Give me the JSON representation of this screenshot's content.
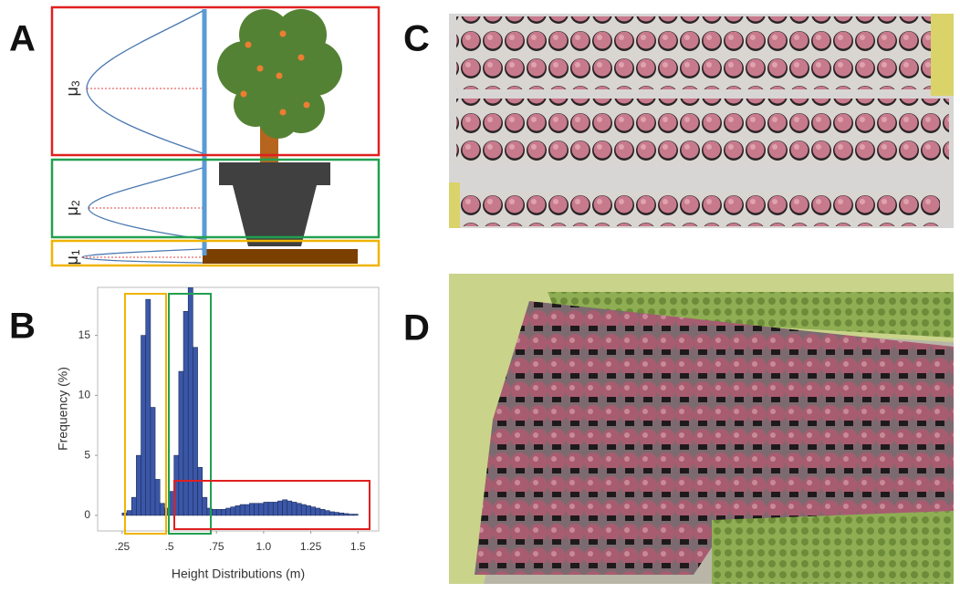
{
  "panel_labels": [
    "A",
    "B",
    "C",
    "D"
  ],
  "diagram": {
    "levels": [
      {
        "symbol": "μ",
        "index": "3"
      },
      {
        "symbol": "μ",
        "index": "2"
      },
      {
        "symbol": "μ",
        "index": "1"
      }
    ]
  },
  "chart_data": {
    "type": "histogram",
    "xlabel": "Height Distributions (m)",
    "ylabel": "Frequency (%)",
    "color": "#3b57a8",
    "bins": [
      0.25,
      0.275,
      0.3,
      0.325,
      0.35,
      0.375,
      0.4,
      0.425,
      0.45,
      0.475,
      0.5,
      0.525,
      0.55,
      0.575,
      0.6,
      0.625,
      0.65,
      0.675,
      0.7,
      0.725,
      0.75,
      0.775,
      0.8,
      0.825,
      0.85,
      0.875,
      0.9,
      0.925,
      0.95,
      0.975,
      1.0,
      1.025,
      1.05,
      1.075,
      1.1,
      1.125,
      1.15,
      1.175,
      1.2,
      1.225,
      1.25,
      1.275,
      1.3,
      1.325,
      1.35,
      1.375,
      1.4,
      1.425,
      1.45,
      1.475,
      1.5
    ],
    "values": [
      0.2,
      0.4,
      1.5,
      5,
      15,
      18,
      9,
      3,
      1,
      0.6,
      2,
      5,
      12,
      17,
      19,
      14,
      4,
      1.5,
      0.6,
      0.5,
      0.5,
      0.5,
      0.6,
      0.7,
      0.8,
      0.9,
      0.9,
      1.0,
      1.0,
      1.0,
      1.1,
      1.1,
      1.1,
      1.2,
      1.3,
      1.2,
      1.1,
      1.0,
      0.9,
      0.8,
      0.7,
      0.6,
      0.5,
      0.4,
      0.3,
      0.25,
      0.2,
      0.15,
      0.1,
      0.1
    ],
    "xlim": [
      0.12,
      1.61
    ],
    "ylim": [
      -1.3,
      19
    ],
    "xticks": [
      {
        "value": 0.25,
        "label": ".25"
      },
      {
        "value": 0.5,
        "label": ".5"
      },
      {
        "value": 0.75,
        "label": ".75"
      },
      {
        "value": 1.0,
        "label": "1.0"
      },
      1.25,
      1.5
    ],
    "yticks": [
      0,
      5,
      10,
      15
    ]
  }
}
